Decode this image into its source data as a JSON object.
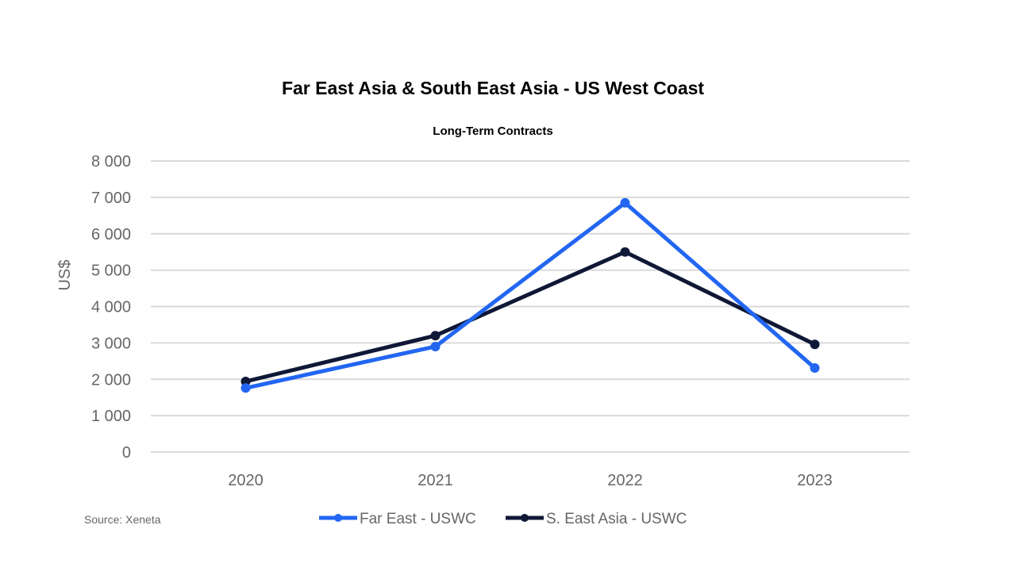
{
  "chart_data": {
    "type": "line",
    "title": "Far East Asia & South East Asia - US West Coast",
    "subtitle": "Long-Term Contracts",
    "xlabel": "",
    "ylabel": "US$",
    "categories": [
      "2020",
      "2021",
      "2022",
      "2023"
    ],
    "ylim": [
      0,
      8000
    ],
    "yticks": [
      0,
      1000,
      2000,
      3000,
      4000,
      5000,
      6000,
      7000,
      8000
    ],
    "ytick_labels": [
      "0",
      "1 000",
      "2 000",
      "3 000",
      "4 000",
      "5 000",
      "6 000",
      "7 000",
      "8 000"
    ],
    "grid": true,
    "legend_position": "bottom",
    "series": [
      {
        "name": "Far East - USWC",
        "color": "#2266f2",
        "values": [
          1760,
          2900,
          6850,
          2310
        ]
      },
      {
        "name": "S. East Asia - USWC",
        "color": "#0f1836",
        "values": [
          1940,
          3200,
          5500,
          2960
        ]
      }
    ],
    "source": "Source: Xeneta"
  }
}
